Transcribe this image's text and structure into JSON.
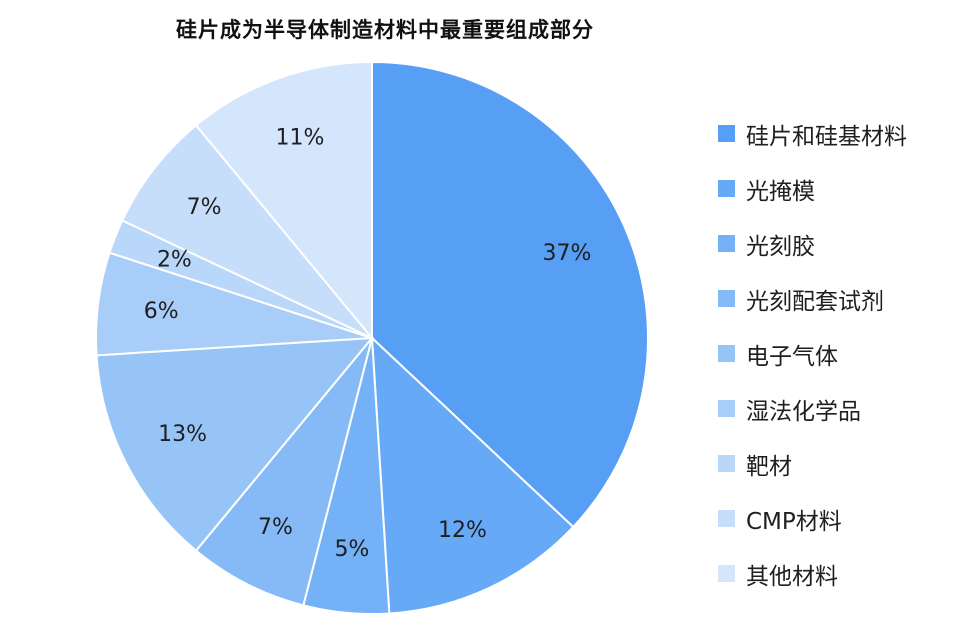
{
  "chart_data": {
    "type": "pie",
    "title": "硅片成为半导体制造材料中最重要组成部分",
    "slices": [
      {
        "name": "硅片和硅基材料",
        "value": 37,
        "label": "37%",
        "color": "#569ff5"
      },
      {
        "name": "光掩模",
        "value": 12,
        "label": "12%",
        "color": "#66a9f7"
      },
      {
        "name": "光刻胶",
        "value": 5,
        "label": "5%",
        "color": "#75b1f6"
      },
      {
        "name": "光刻配套试剂",
        "value": 7,
        "label": "7%",
        "color": "#86baf7"
      },
      {
        "name": "电子气体",
        "value": 13,
        "label": "13%",
        "color": "#97c4f7"
      },
      {
        "name": "湿法化学品",
        "value": 6,
        "label": "6%",
        "color": "#a8cdf8"
      },
      {
        "name": "靶材",
        "value": 2,
        "label": "2%",
        "color": "#b9d7f9"
      },
      {
        "name": "CMP材料",
        "value": 7,
        "label": "7%",
        "color": "#c6deFA"
      },
      {
        "name": "其他材料",
        "value": 11,
        "label": "11%",
        "color": "#d3e6fb"
      }
    ],
    "legend_position": "right"
  }
}
